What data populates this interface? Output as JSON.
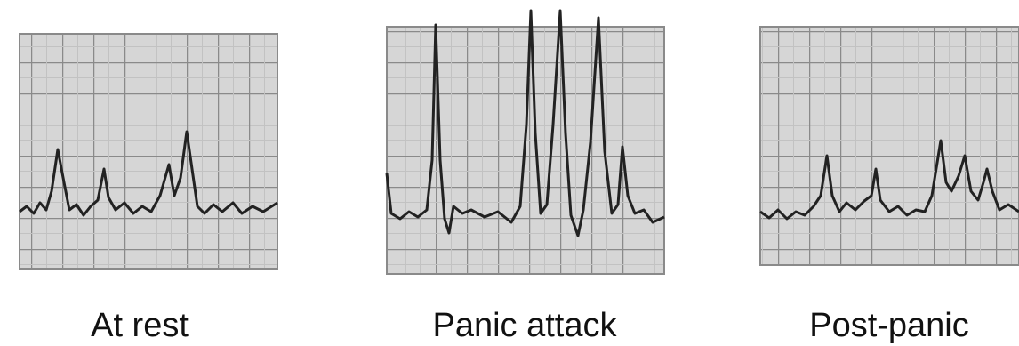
{
  "panels": [
    {
      "label": "At rest"
    },
    {
      "label": "Panic attack"
    },
    {
      "label": "Post-panic"
    }
  ]
}
